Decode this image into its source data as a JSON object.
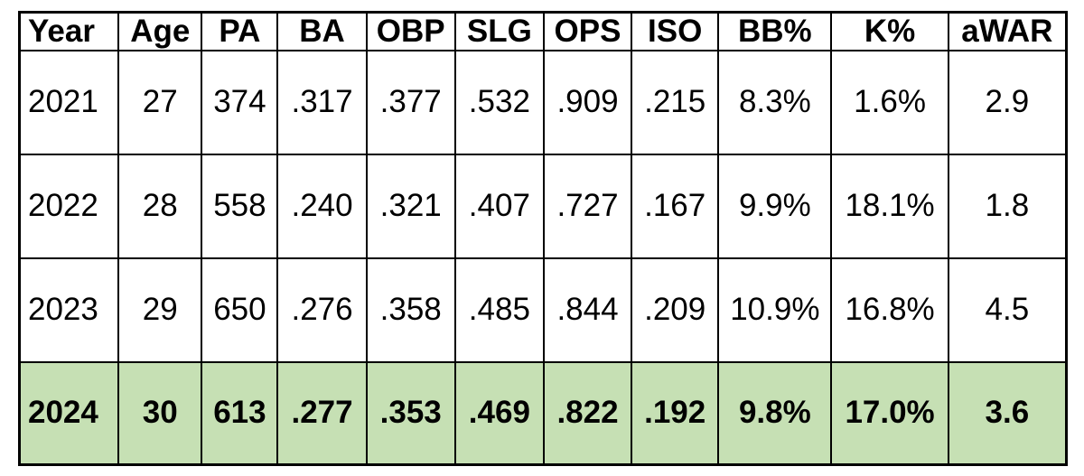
{
  "table": {
    "header": [
      "Year",
      "Age",
      "PA",
      "BA",
      "OBP",
      "SLG",
      "OPS",
      "ISO",
      "BB%",
      "K%",
      "aWAR"
    ],
    "rows": [
      [
        "2021",
        "27",
        "374",
        ".317",
        ".377",
        ".532",
        ".909",
        ".215",
        "8.3%",
        "1.6%",
        "2.9"
      ],
      [
        "2022",
        "28",
        "558",
        ".240",
        ".321",
        ".407",
        ".727",
        ".167",
        "9.9%",
        "18.1%",
        "1.8"
      ],
      [
        "2023",
        "29",
        "650",
        ".276",
        ".358",
        ".485",
        ".844",
        ".209",
        "10.9%",
        "16.8%",
        "4.5"
      ],
      [
        "2024",
        "30",
        "613",
        ".277",
        ".353",
        ".469",
        ".822",
        ".192",
        "9.8%",
        "17.0%",
        "3.6"
      ]
    ]
  }
}
